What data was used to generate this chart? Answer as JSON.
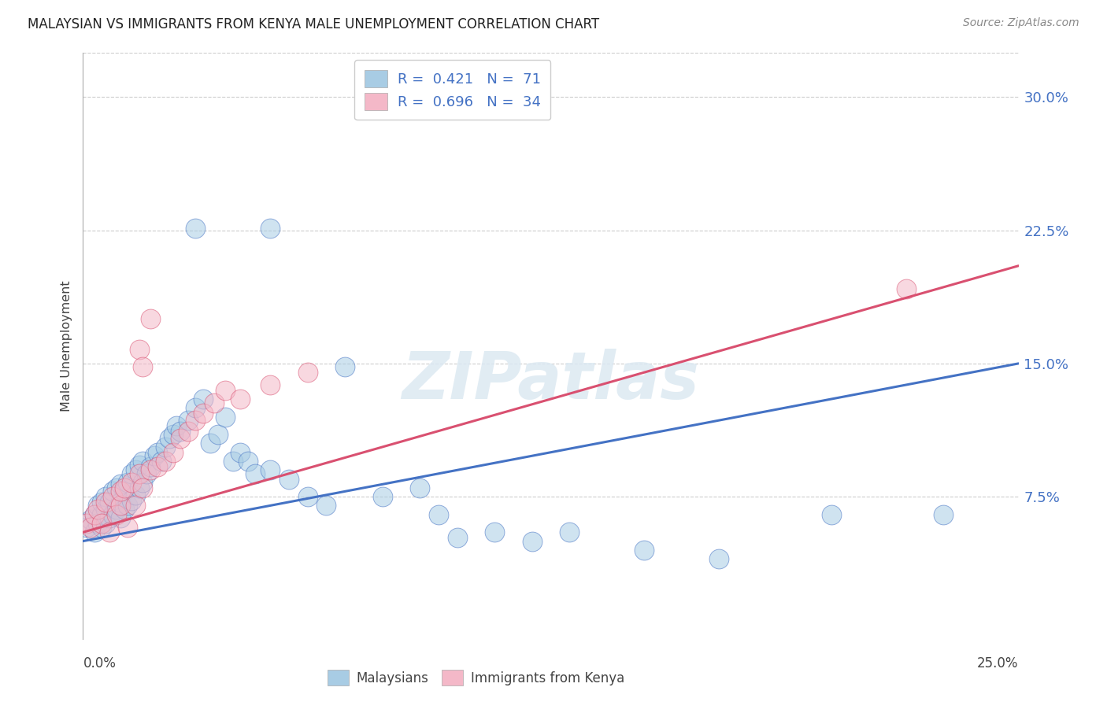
{
  "title": "MALAYSIAN VS IMMIGRANTS FROM KENYA MALE UNEMPLOYMENT CORRELATION CHART",
  "source": "Source: ZipAtlas.com",
  "ylabel": "Male Unemployment",
  "xmin": 0.0,
  "xmax": 0.25,
  "ymin": -0.005,
  "ymax": 0.325,
  "y_ticks": [
    0.075,
    0.15,
    0.225,
    0.3
  ],
  "y_tick_labels": [
    "7.5%",
    "15.0%",
    "22.5%",
    "30.0%"
  ],
  "legend_r1": "R = 0.421",
  "legend_n1": "N = 71",
  "legend_r2": "R = 0.696",
  "legend_n2": "N = 34",
  "legend_label1": "Malaysians",
  "legend_label2": "Immigrants from Kenya",
  "color_blue": "#a8cce4",
  "color_pink": "#f4b8c8",
  "line_blue": "#4472c4",
  "line_pink": "#d95070",
  "text_blue": "#4472c4",
  "watermark_color": "#dce9f2",
  "blue_x": [
    0.001,
    0.002,
    0.003,
    0.003,
    0.004,
    0.004,
    0.005,
    0.005,
    0.005,
    0.006,
    0.006,
    0.006,
    0.007,
    0.007,
    0.008,
    0.008,
    0.009,
    0.009,
    0.01,
    0.01,
    0.01,
    0.011,
    0.011,
    0.012,
    0.012,
    0.013,
    0.013,
    0.014,
    0.014,
    0.015,
    0.015,
    0.016,
    0.016,
    0.017,
    0.018,
    0.019,
    0.02,
    0.021,
    0.022,
    0.023,
    0.024,
    0.025,
    0.026,
    0.028,
    0.03,
    0.032,
    0.034,
    0.036,
    0.038,
    0.04,
    0.042,
    0.044,
    0.046,
    0.05,
    0.055,
    0.06,
    0.065,
    0.08,
    0.09,
    0.095,
    0.1,
    0.11,
    0.12,
    0.13,
    0.15,
    0.17,
    0.03,
    0.05,
    0.07,
    0.2,
    0.23
  ],
  "blue_y": [
    0.058,
    0.062,
    0.055,
    0.065,
    0.06,
    0.07,
    0.058,
    0.065,
    0.072,
    0.06,
    0.068,
    0.075,
    0.063,
    0.072,
    0.065,
    0.078,
    0.068,
    0.08,
    0.063,
    0.072,
    0.082,
    0.068,
    0.078,
    0.07,
    0.083,
    0.073,
    0.088,
    0.076,
    0.09,
    0.08,
    0.093,
    0.083,
    0.095,
    0.088,
    0.092,
    0.098,
    0.1,
    0.095,
    0.103,
    0.108,
    0.11,
    0.115,
    0.112,
    0.118,
    0.125,
    0.13,
    0.105,
    0.11,
    0.12,
    0.095,
    0.1,
    0.095,
    0.088,
    0.09,
    0.085,
    0.075,
    0.07,
    0.075,
    0.08,
    0.065,
    0.052,
    0.055,
    0.05,
    0.055,
    0.045,
    0.04,
    0.226,
    0.226,
    0.148,
    0.065,
    0.065
  ],
  "pink_x": [
    0.001,
    0.002,
    0.003,
    0.004,
    0.005,
    0.006,
    0.007,
    0.008,
    0.009,
    0.01,
    0.01,
    0.011,
    0.012,
    0.013,
    0.014,
    0.015,
    0.016,
    0.018,
    0.02,
    0.022,
    0.024,
    0.026,
    0.028,
    0.03,
    0.032,
    0.035,
    0.038,
    0.042,
    0.05,
    0.06,
    0.015,
    0.018,
    0.22,
    0.016
  ],
  "pink_y": [
    0.06,
    0.058,
    0.065,
    0.068,
    0.06,
    0.072,
    0.055,
    0.075,
    0.065,
    0.07,
    0.078,
    0.08,
    0.058,
    0.083,
    0.07,
    0.088,
    0.08,
    0.09,
    0.092,
    0.095,
    0.1,
    0.108,
    0.112,
    0.118,
    0.122,
    0.128,
    0.135,
    0.13,
    0.138,
    0.145,
    0.158,
    0.175,
    0.192,
    0.148
  ],
  "blue_line_x": [
    0.0,
    0.25
  ],
  "blue_line_y": [
    0.05,
    0.15
  ],
  "pink_line_x": [
    0.0,
    0.25
  ],
  "pink_line_y": [
    0.055,
    0.205
  ]
}
